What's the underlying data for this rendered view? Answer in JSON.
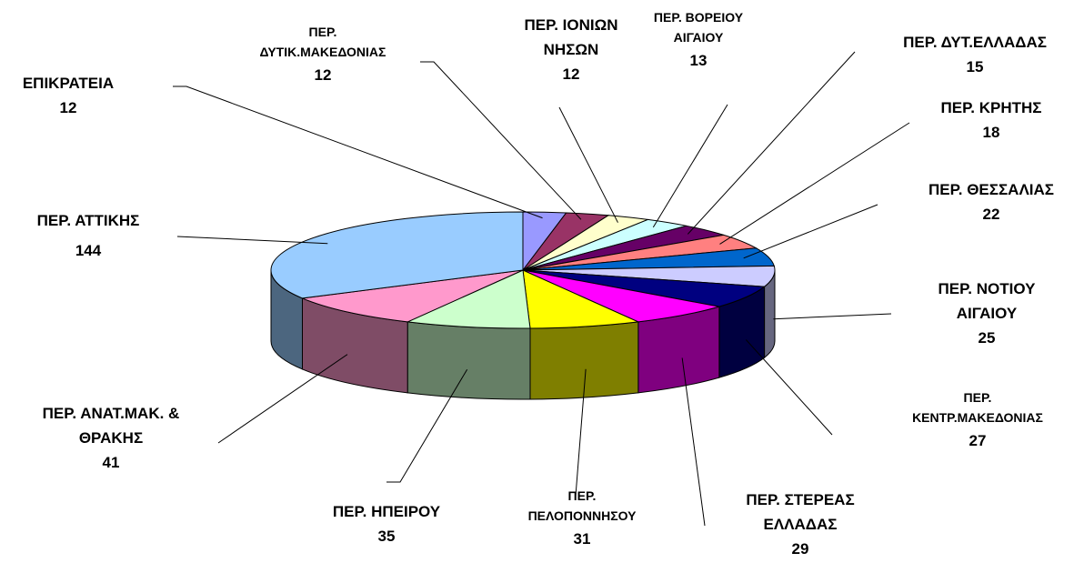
{
  "chart_data": {
    "type": "pie3d",
    "categories": [
      "ΕΠΙΚΡΑΤΕΙΑ",
      "ΠΕΡ.\nΔΥΤΙΚ.ΜΑΚΕΔΟΝΙΑΣ",
      "ΠΕΡ. ΙΟΝΙΩΝ\nΝΗΣΩΝ",
      "ΠΕΡ. ΒΟΡΕΙΟΥ\nΑΙΓΑΙΟΥ",
      "ΠΕΡ. ΔΥΤ.ΕΛΛΑΔΑΣ",
      "ΠΕΡ. ΚΡΗΤΗΣ",
      "ΠΕΡ. ΘΕΣΣΑΛΙΑΣ",
      "ΠΕΡ. ΝΟΤΙΟΥ\nΑΙΓΑΙΟΥ",
      "ΠΕΡ.\nΚΕΝΤΡ.ΜΑΚΕΔΟΝΙΑΣ",
      "ΠΕΡ. ΣΤΕΡΕΑΣ\nΕΛΛΑΔΑΣ",
      "ΠΕΡ.\nΠΕΛΟΠΟΝΝΗΣΟΥ",
      "ΠΕΡ. ΗΠΕΙΡΟΥ",
      "ΠΕΡ. ΑΝΑΤ.ΜΑΚ. &\nΘΡΑΚΗΣ",
      "ΠΕΡ. ΑΤΤΙΚΗΣ"
    ],
    "values": [
      12,
      12,
      12,
      13,
      15,
      18,
      22,
      25,
      27,
      29,
      31,
      35,
      41,
      144
    ],
    "colors": [
      "#9999ff",
      "#993366",
      "#ffffcc",
      "#ccffff",
      "#660066",
      "#ff8080",
      "#0066cc",
      "#ccccff",
      "#000080",
      "#ff00ff",
      "#ffff00",
      "#ccffcc",
      "#ff99cc",
      "#99ccff"
    ]
  }
}
